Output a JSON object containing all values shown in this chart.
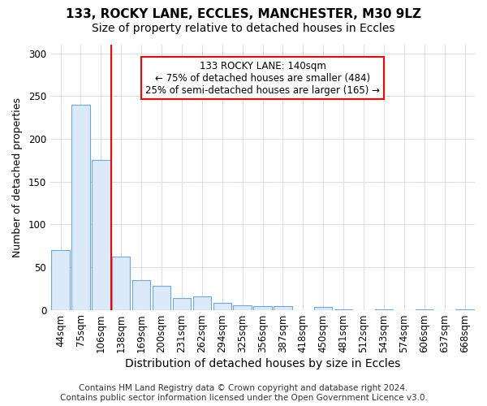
{
  "title": "133, ROCKY LANE, ECCLES, MANCHESTER, M30 9LZ",
  "subtitle": "Size of property relative to detached houses in Eccles",
  "xlabel": "Distribution of detached houses by size in Eccles",
  "ylabel": "Number of detached properties",
  "categories": [
    "44sqm",
    "75sqm",
    "106sqm",
    "138sqm",
    "169sqm",
    "200sqm",
    "231sqm",
    "262sqm",
    "294sqm",
    "325sqm",
    "356sqm",
    "387sqm",
    "418sqm",
    "450sqm",
    "481sqm",
    "512sqm",
    "543sqm",
    "574sqm",
    "606sqm",
    "637sqm",
    "668sqm"
  ],
  "values": [
    70,
    240,
    175,
    62,
    35,
    28,
    14,
    16,
    8,
    5,
    4,
    4,
    0,
    3,
    1,
    0,
    1,
    0,
    1,
    0,
    1
  ],
  "bar_color": "#dce9f8",
  "bar_edgecolor": "#6fa8d8",
  "vline_index": 3,
  "vline_color": "red",
  "annotation_text": "133 ROCKY LANE: 140sqm\n← 75% of detached houses are smaller (484)\n25% of semi-detached houses are larger (165) →",
  "annotation_box_edgecolor": "red",
  "annotation_box_facecolor": "white",
  "ylim": [
    0,
    310
  ],
  "yticks": [
    0,
    50,
    100,
    150,
    200,
    250,
    300
  ],
  "footer_line1": "Contains HM Land Registry data © Crown copyright and database right 2024.",
  "footer_line2": "Contains public sector information licensed under the Open Government Licence v3.0.",
  "bg_color": "#ffffff",
  "plot_bg_color": "#ffffff",
  "title_fontsize": 11,
  "subtitle_fontsize": 10,
  "xlabel_fontsize": 10,
  "ylabel_fontsize": 9,
  "footer_fontsize": 7.5,
  "tick_fontsize": 8.5
}
